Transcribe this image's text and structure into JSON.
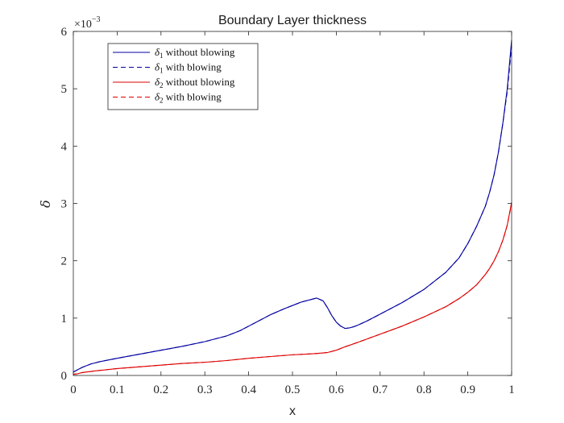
{
  "chart_data": {
    "type": "line",
    "title": "Boundary Layer thickness",
    "xlabel": "x",
    "ylabel": "δ",
    "y_exponent_label": "×10",
    "y_exponent_power": "−3",
    "xlim": [
      0,
      1
    ],
    "ylim": [
      0,
      6
    ],
    "x_ticks": [
      0,
      0.1,
      0.2,
      0.3,
      0.4,
      0.5,
      0.6,
      0.7,
      0.8,
      0.9,
      1
    ],
    "x_tick_labels": [
      "0",
      "0.1",
      "0.2",
      "0.3",
      "0.4",
      "0.5",
      "0.6",
      "0.7",
      "0.8",
      "0.9",
      "1"
    ],
    "y_ticks": [
      0,
      1,
      2,
      3,
      4,
      5,
      6
    ],
    "y_tick_labels": [
      "0",
      "1",
      "2",
      "3",
      "4",
      "5",
      "6"
    ],
    "grid": false,
    "legend_position": "top-left",
    "series": [
      {
        "symbol": "δ",
        "subscript": "1",
        "text": " without blowing",
        "color": "#0000a0",
        "dash": "solid",
        "x": [
          0,
          0.01,
          0.02,
          0.04,
          0.06,
          0.08,
          0.1,
          0.15,
          0.2,
          0.25,
          0.3,
          0.35,
          0.38,
          0.4,
          0.42,
          0.45,
          0.48,
          0.5,
          0.52,
          0.54,
          0.555,
          0.57,
          0.58,
          0.59,
          0.6,
          0.61,
          0.62,
          0.63,
          0.64,
          0.65,
          0.67,
          0.7,
          0.75,
          0.8,
          0.85,
          0.88,
          0.9,
          0.92,
          0.94,
          0.95,
          0.96,
          0.97,
          0.98,
          0.99,
          1.0
        ],
        "y": [
          0.06,
          0.1,
          0.14,
          0.2,
          0.24,
          0.27,
          0.3,
          0.37,
          0.44,
          0.51,
          0.59,
          0.69,
          0.78,
          0.86,
          0.94,
          1.06,
          1.16,
          1.22,
          1.28,
          1.32,
          1.35,
          1.3,
          1.18,
          1.04,
          0.93,
          0.86,
          0.82,
          0.83,
          0.85,
          0.88,
          0.95,
          1.07,
          1.27,
          1.5,
          1.8,
          2.05,
          2.3,
          2.6,
          2.95,
          3.2,
          3.5,
          3.9,
          4.4,
          5.0,
          5.85
        ]
      },
      {
        "symbol": "δ",
        "subscript": "1",
        "text": " with blowing",
        "color": "#0000a0",
        "dash": "dashed",
        "x": [
          0,
          0.01,
          0.02,
          0.04,
          0.06,
          0.08,
          0.1,
          0.15,
          0.2,
          0.25,
          0.3,
          0.35,
          0.38,
          0.4,
          0.42,
          0.45,
          0.48,
          0.5,
          0.52,
          0.54,
          0.555,
          0.57,
          0.58,
          0.59,
          0.6,
          0.61,
          0.62,
          0.63,
          0.64,
          0.65,
          0.67,
          0.7,
          0.75,
          0.8,
          0.85,
          0.88,
          0.9,
          0.92,
          0.94,
          0.95,
          0.96,
          0.97,
          0.98,
          0.99,
          1.0
        ],
        "y": [
          0.06,
          0.1,
          0.14,
          0.2,
          0.24,
          0.27,
          0.3,
          0.37,
          0.44,
          0.51,
          0.59,
          0.69,
          0.78,
          0.86,
          0.94,
          1.06,
          1.16,
          1.22,
          1.28,
          1.32,
          1.35,
          1.3,
          1.18,
          1.04,
          0.93,
          0.86,
          0.82,
          0.83,
          0.85,
          0.88,
          0.95,
          1.07,
          1.27,
          1.5,
          1.8,
          2.05,
          2.3,
          2.6,
          2.95,
          3.2,
          3.5,
          3.9,
          4.4,
          4.95,
          5.75
        ]
      },
      {
        "symbol": "δ",
        "subscript": "2",
        "text": " without blowing",
        "color": "#dd0000",
        "dash": "solid",
        "x": [
          0,
          0.01,
          0.02,
          0.05,
          0.1,
          0.15,
          0.2,
          0.25,
          0.3,
          0.35,
          0.4,
          0.45,
          0.5,
          0.55,
          0.58,
          0.6,
          0.62,
          0.65,
          0.7,
          0.75,
          0.8,
          0.85,
          0.88,
          0.9,
          0.92,
          0.94,
          0.95,
          0.96,
          0.97,
          0.98,
          0.99,
          1.0
        ],
        "y": [
          0.02,
          0.03,
          0.05,
          0.08,
          0.12,
          0.15,
          0.18,
          0.21,
          0.23,
          0.26,
          0.3,
          0.33,
          0.36,
          0.38,
          0.4,
          0.44,
          0.5,
          0.58,
          0.72,
          0.86,
          1.02,
          1.2,
          1.34,
          1.45,
          1.58,
          1.76,
          1.87,
          2.0,
          2.16,
          2.36,
          2.62,
          3.02
        ]
      },
      {
        "symbol": "δ",
        "subscript": "2",
        "text": " with blowing",
        "color": "#dd0000",
        "dash": "dashed",
        "x": [
          0,
          0.01,
          0.02,
          0.05,
          0.1,
          0.15,
          0.2,
          0.25,
          0.3,
          0.35,
          0.4,
          0.45,
          0.5,
          0.55,
          0.58,
          0.6,
          0.62,
          0.65,
          0.7,
          0.75,
          0.8,
          0.85,
          0.88,
          0.9,
          0.92,
          0.94,
          0.95,
          0.96,
          0.97,
          0.98,
          0.99,
          1.0
        ],
        "y": [
          0.02,
          0.03,
          0.05,
          0.08,
          0.12,
          0.15,
          0.18,
          0.21,
          0.23,
          0.26,
          0.3,
          0.33,
          0.36,
          0.38,
          0.4,
          0.44,
          0.5,
          0.58,
          0.72,
          0.86,
          1.02,
          1.2,
          1.34,
          1.45,
          1.58,
          1.76,
          1.87,
          2.0,
          2.16,
          2.36,
          2.62,
          3.0
        ]
      }
    ]
  }
}
